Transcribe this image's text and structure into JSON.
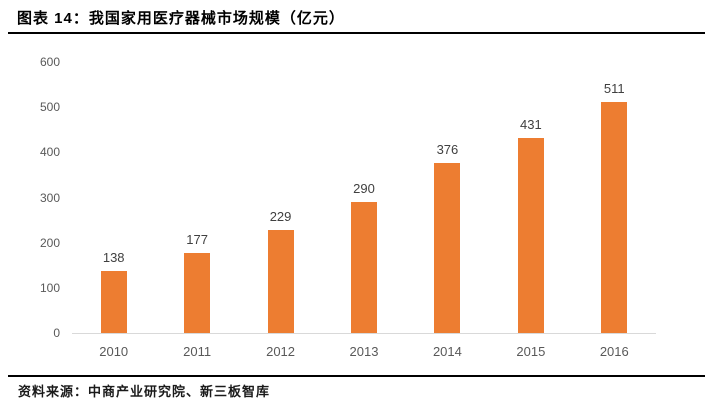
{
  "header": {
    "title": "图表 14：我国家用医疗器械市场规模（亿元）"
  },
  "footer": {
    "source": "资料来源：中商产业研究院、新三板智库"
  },
  "colors": {
    "bar": "#ED7D31",
    "axis_line": "#D9D9D9",
    "tick_label": "#595959",
    "data_label": "#404040",
    "title_text": "#000000"
  },
  "chart_data": {
    "type": "bar",
    "title": "我国家用医疗器械市场规模（亿元）",
    "categories": [
      "2010",
      "2011",
      "2012",
      "2013",
      "2014",
      "2015",
      "2016"
    ],
    "values": [
      138,
      177,
      229,
      290,
      376,
      431,
      511
    ],
    "xlabel": "",
    "ylabel": "",
    "ylim": [
      0,
      600
    ],
    "yticks": [
      0,
      100,
      200,
      300,
      400,
      500,
      600
    ],
    "grid": false,
    "legend": "none",
    "data_labels": true,
    "unit": "亿元"
  }
}
